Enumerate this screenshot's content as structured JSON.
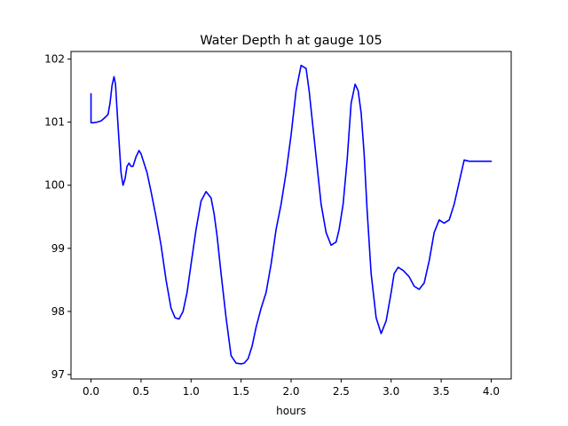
{
  "chart_data": {
    "type": "line",
    "title": "Water Depth h at gauge 105",
    "xlabel": "hours",
    "ylabel": "",
    "xlim": [
      -0.2,
      4.2
    ],
    "ylim": [
      96.93,
      102.12
    ],
    "xticks": [
      0.0,
      0.5,
      1.0,
      1.5,
      2.0,
      2.5,
      3.0,
      3.5,
      4.0
    ],
    "xtick_labels": [
      "0.0",
      "0.5",
      "1.0",
      "1.5",
      "2.0",
      "2.5",
      "3.0",
      "3.5",
      "4.0"
    ],
    "yticks": [
      97,
      98,
      99,
      100,
      101,
      102
    ],
    "ytick_labels": [
      "97",
      "98",
      "99",
      "100",
      "101",
      "102"
    ],
    "grid": false,
    "series": [
      {
        "color": "#0000ff",
        "x": [
          0.0,
          0.0,
          0.02,
          0.06,
          0.1,
          0.13,
          0.17,
          0.19,
          0.21,
          0.23,
          0.245,
          0.26,
          0.28,
          0.3,
          0.32,
          0.34,
          0.36,
          0.38,
          0.4,
          0.42,
          0.45,
          0.48,
          0.5,
          0.53,
          0.56,
          0.6,
          0.65,
          0.7,
          0.75,
          0.8,
          0.84,
          0.88,
          0.92,
          0.96,
          1.0,
          1.05,
          1.1,
          1.15,
          1.2,
          1.23,
          1.26,
          1.3,
          1.35,
          1.4,
          1.45,
          1.5,
          1.53,
          1.57,
          1.61,
          1.65,
          1.7,
          1.75,
          1.8,
          1.85,
          1.9,
          1.95,
          2.0,
          2.05,
          2.1,
          2.15,
          2.18,
          2.22,
          2.26,
          2.3,
          2.35,
          2.4,
          2.45,
          2.48,
          2.52,
          2.56,
          2.6,
          2.64,
          2.67,
          2.7,
          2.73,
          2.76,
          2.8,
          2.85,
          2.9,
          2.95,
          3.0,
          3.03,
          3.07,
          3.12,
          3.18,
          3.23,
          3.28,
          3.33,
          3.38,
          3.43,
          3.48,
          3.53,
          3.58,
          3.63,
          3.68,
          3.73,
          3.78,
          3.83,
          3.88,
          3.93,
          3.97,
          4.0
        ],
        "y": [
          101.45,
          100.99,
          100.99,
          101.0,
          101.02,
          101.06,
          101.12,
          101.3,
          101.58,
          101.72,
          101.6,
          101.2,
          100.7,
          100.2,
          100.0,
          100.1,
          100.3,
          100.35,
          100.3,
          100.3,
          100.45,
          100.55,
          100.5,
          100.35,
          100.2,
          99.9,
          99.5,
          99.05,
          98.5,
          98.05,
          97.9,
          97.88,
          98.0,
          98.3,
          98.75,
          99.3,
          99.75,
          99.9,
          99.8,
          99.55,
          99.2,
          98.6,
          97.9,
          97.3,
          97.18,
          97.17,
          97.18,
          97.25,
          97.45,
          97.75,
          98.05,
          98.3,
          98.75,
          99.3,
          99.7,
          100.2,
          100.8,
          101.5,
          101.9,
          101.85,
          101.5,
          100.9,
          100.3,
          99.7,
          99.25,
          99.05,
          99.1,
          99.3,
          99.7,
          100.4,
          101.3,
          101.6,
          101.5,
          101.15,
          100.5,
          99.6,
          98.6,
          97.9,
          97.65,
          97.85,
          98.3,
          98.6,
          98.7,
          98.65,
          98.55,
          98.4,
          98.35,
          98.45,
          98.8,
          99.25,
          99.45,
          99.4,
          99.45,
          99.7,
          100.05,
          100.4,
          100.38,
          100.38,
          100.38,
          100.38,
          100.38,
          100.38
        ]
      }
    ]
  }
}
